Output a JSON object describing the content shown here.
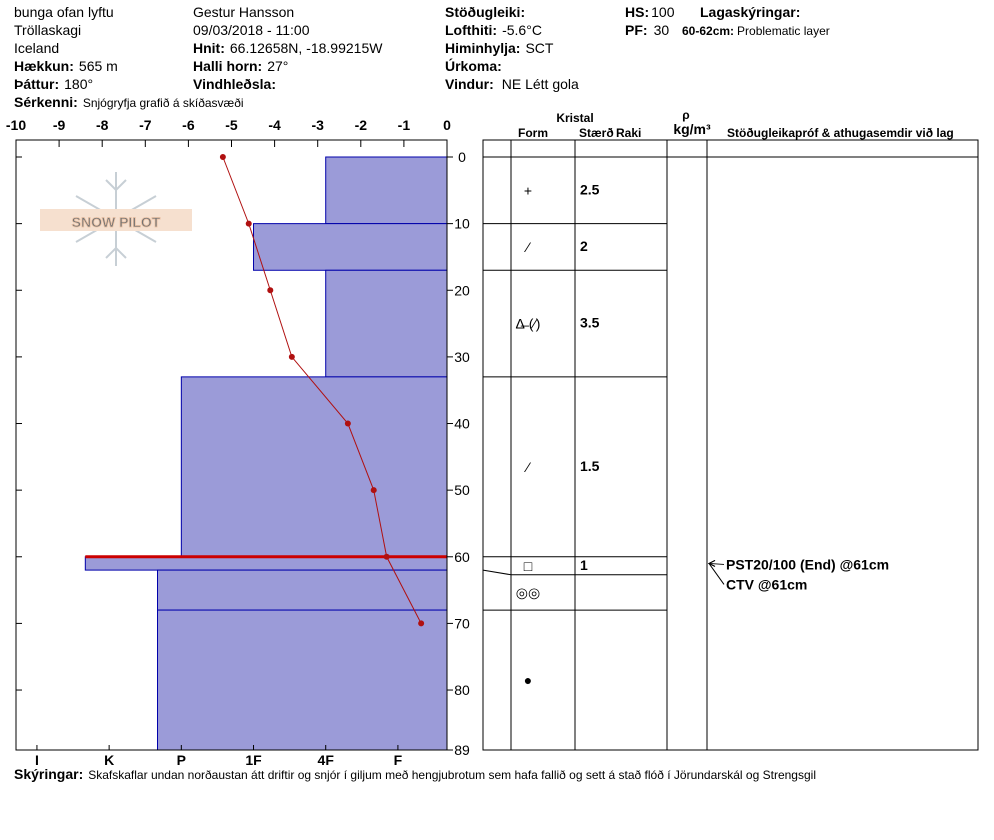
{
  "header": {
    "location": "bunga ofan lyftu",
    "region": "Tröllaskagi",
    "country": "Iceland",
    "elevation": {
      "label": "Hækkun:",
      "value": "565 m"
    },
    "aspect": {
      "label": "Þáttur:",
      "value": "180°"
    },
    "features": {
      "label": "Sérkenni:",
      "value": "Snjógryfja grafið á skíðasvæði"
    },
    "observer": "Gestur Hansson",
    "datetime": "09/03/2018 - 11:00",
    "coords": {
      "label": "Hnit:",
      "value": "66.12658N, -18.99215W"
    },
    "slope": {
      "label": "Halli horn:",
      "value": "27°"
    },
    "wind_loading": {
      "label": "Vindhleðsla:"
    },
    "stability": {
      "label": "Stöðugleiki:"
    },
    "air_temp": {
      "label": "Lofthiti:",
      "value": "-5.6°C"
    },
    "sky": {
      "label": "Himinhylja:",
      "value": "SCT"
    },
    "precip": {
      "label": "Úrkoma:"
    },
    "wind": {
      "label": "Vindur:",
      "value": "NE Létt gola"
    },
    "hs": {
      "label": "HS:",
      "value": "100"
    },
    "pf": {
      "label": "PF:",
      "value": "30"
    },
    "layer_notes": {
      "label": "Lagaskýringar:",
      "depth": "60-62cm:",
      "text": "Problematic layer"
    }
  },
  "footer": {
    "label": "Skýringar:",
    "text": "Skafskaflar undan norðaustan átt driftir og snjór í giljum með hengjubrotum sem hafa fallið og sett á stað flóð í Jörundarskál  og Strengsgil"
  },
  "logo": "SNOW PILOT",
  "chart_data": {
    "type": "snow-profile",
    "xlim": [
      -10,
      0
    ],
    "xticks": [
      -10,
      -9,
      -8,
      -7,
      -6,
      -5,
      -4,
      -3,
      -2,
      -1,
      0
    ],
    "ylim": [
      0,
      89
    ],
    "yticks": [
      0,
      10,
      20,
      30,
      40,
      50,
      60,
      70,
      80,
      89
    ],
    "hardness_lim": [
      0.32,
      6.29
    ],
    "hardness_ticks": [
      {
        "value": 6,
        "label": "I"
      },
      {
        "value": 5,
        "label": "K"
      },
      {
        "value": 4,
        "label": "P"
      },
      {
        "value": 3,
        "label": "1F"
      },
      {
        "value": 2,
        "label": "4F"
      },
      {
        "value": 1,
        "label": "F"
      }
    ],
    "bar_color": "#9b9bd8",
    "line_color": "#b01010",
    "temperature": {
      "depths": [
        0,
        10,
        20,
        30,
        40,
        50,
        60,
        70
      ],
      "values": [
        -5.2,
        -4.6,
        -4.1,
        -3.6,
        -2.3,
        -1.7,
        -1.4,
        -0.6
      ]
    },
    "layers": [
      {
        "top": 0,
        "bottom": 10,
        "hardness": 2,
        "form": "+",
        "size": "2.5"
      },
      {
        "top": 10,
        "bottom": 17,
        "hardness": 3,
        "form": "⁄",
        "size": "2"
      },
      {
        "top": 17,
        "bottom": 33,
        "hardness": 2,
        "form": "Δ̶ (⁄)",
        "size": "3.5"
      },
      {
        "top": 33,
        "bottom": 60,
        "hardness": 4,
        "form": "⁄",
        "size": "1.5"
      },
      {
        "top": 60,
        "bottom": 62,
        "hardness": 5.33,
        "form": "□",
        "size": "1",
        "problematic": true
      },
      {
        "top": 62,
        "bottom": 68,
        "hardness": 4.33,
        "form": "◎◎"
      },
      {
        "top": 68,
        "bottom": 89,
        "hardness": 4.33,
        "form": "●"
      }
    ],
    "table_headers": {
      "crystal": "Kristal",
      "form": "Form",
      "size": "Stærð",
      "moisture": "Raki",
      "density": "ρ",
      "density_unit": "kg/m³",
      "comments": "Stöðugleikapróf & athugasemdir við lag"
    },
    "tests": [
      {
        "depth": 61,
        "text": "PST20/100 (End) @61cm"
      },
      {
        "depth": 61,
        "text": "CTV @61cm"
      }
    ]
  }
}
